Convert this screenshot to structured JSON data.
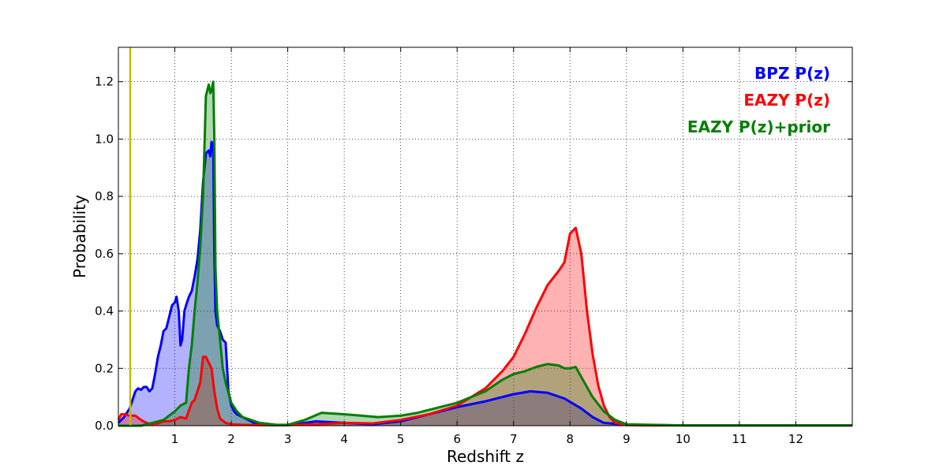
{
  "chart_data": {
    "type": "area",
    "xlabel": "Redshift z",
    "ylabel": "Probability",
    "xlim": [
      0,
      13
    ],
    "ylim": [
      0,
      1.32
    ],
    "x_ticks": [
      1,
      2,
      3,
      4,
      5,
      6,
      7,
      8,
      9,
      10,
      11,
      12
    ],
    "y_ticks": [
      0.0,
      0.2,
      0.4,
      0.6,
      0.8,
      1.0,
      1.2
    ],
    "x_tick_labels": [
      "1",
      "2",
      "3",
      "4",
      "5",
      "6",
      "7",
      "8",
      "9",
      "10",
      "11",
      "12"
    ],
    "y_tick_labels": [
      "0.0",
      "0.2",
      "0.4",
      "0.6",
      "0.8",
      "1.0",
      "1.2"
    ],
    "grid": true,
    "legend_position": "top-right",
    "vertical_line": {
      "x": 0.21,
      "color": "#bfbf00"
    },
    "series": [
      {
        "name": "BPZ P(z)",
        "color": "#0000ff",
        "fill": "#0000ff",
        "x": [
          0.0,
          0.1,
          0.2,
          0.3,
          0.35,
          0.4,
          0.45,
          0.5,
          0.55,
          0.6,
          0.65,
          0.7,
          0.75,
          0.8,
          0.85,
          0.9,
          0.95,
          1.0,
          1.03,
          1.07,
          1.1,
          1.13,
          1.17,
          1.2,
          1.25,
          1.3,
          1.35,
          1.4,
          1.45,
          1.5,
          1.55,
          1.6,
          1.63,
          1.65,
          1.68,
          1.7,
          1.72,
          1.75,
          1.8,
          1.85,
          1.9,
          1.95,
          2.0,
          2.05,
          2.1,
          2.2,
          2.3,
          2.4,
          2.5,
          2.7,
          3.0,
          3.5,
          4.0,
          4.5,
          5.0,
          5.5,
          6.0,
          6.5,
          7.0,
          7.3,
          7.6,
          7.9,
          8.2,
          8.4,
          8.6,
          9.0,
          10.0,
          11.0,
          12.0,
          13.0
        ],
        "y": [
          0.01,
          0.03,
          0.06,
          0.12,
          0.13,
          0.125,
          0.135,
          0.135,
          0.12,
          0.13,
          0.18,
          0.24,
          0.28,
          0.33,
          0.34,
          0.38,
          0.42,
          0.43,
          0.45,
          0.4,
          0.28,
          0.3,
          0.4,
          0.42,
          0.45,
          0.47,
          0.52,
          0.58,
          0.68,
          0.85,
          0.95,
          0.96,
          0.94,
          0.99,
          0.98,
          0.6,
          0.4,
          0.35,
          0.33,
          0.3,
          0.29,
          0.12,
          0.07,
          0.05,
          0.04,
          0.03,
          0.02,
          0.01,
          0.005,
          0.002,
          0.002,
          0.015,
          0.01,
          0.005,
          0.015,
          0.04,
          0.065,
          0.085,
          0.11,
          0.12,
          0.115,
          0.095,
          0.06,
          0.03,
          0.01,
          0.003,
          0.001,
          0.001,
          0.001,
          0.001
        ]
      },
      {
        "name": "EAZY P(z)",
        "color": "#ff0000",
        "fill": "#ff0000",
        "x": [
          0.0,
          0.05,
          0.1,
          0.2,
          0.3,
          0.4,
          0.5,
          0.6,
          0.7,
          0.8,
          0.9,
          1.0,
          1.1,
          1.2,
          1.3,
          1.35,
          1.4,
          1.45,
          1.5,
          1.55,
          1.6,
          1.65,
          1.7,
          1.75,
          1.8,
          1.9,
          2.0,
          2.2,
          2.5,
          3.0,
          3.5,
          4.0,
          4.5,
          5.0,
          5.5,
          6.0,
          6.5,
          6.8,
          7.0,
          7.2,
          7.4,
          7.6,
          7.8,
          7.9,
          8.0,
          8.1,
          8.2,
          8.3,
          8.4,
          8.5,
          8.6,
          8.7,
          8.8,
          9.0,
          9.5,
          10.0,
          11.0,
          12.0,
          13.0
        ],
        "y": [
          0.02,
          0.04,
          0.04,
          0.035,
          0.035,
          0.02,
          0.01,
          0.005,
          0.008,
          0.015,
          0.015,
          0.02,
          0.03,
          0.025,
          0.08,
          0.09,
          0.12,
          0.15,
          0.24,
          0.24,
          0.22,
          0.2,
          0.12,
          0.06,
          0.025,
          0.01,
          0.005,
          0.003,
          0.002,
          0.002,
          0.005,
          0.01,
          0.008,
          0.02,
          0.04,
          0.07,
          0.13,
          0.19,
          0.24,
          0.32,
          0.41,
          0.49,
          0.54,
          0.57,
          0.67,
          0.69,
          0.6,
          0.4,
          0.25,
          0.14,
          0.07,
          0.03,
          0.01,
          0.002,
          0.001,
          0.001,
          0.001,
          0.001,
          0.001
        ]
      },
      {
        "name": "EAZY P(z)+prior",
        "color": "#007f00",
        "fill": "#007f00",
        "x": [
          0.0,
          0.2,
          0.4,
          0.6,
          0.8,
          1.0,
          1.1,
          1.2,
          1.25,
          1.3,
          1.35,
          1.4,
          1.45,
          1.5,
          1.55,
          1.6,
          1.63,
          1.65,
          1.68,
          1.7,
          1.72,
          1.75,
          1.8,
          1.85,
          1.9,
          2.0,
          2.1,
          2.2,
          2.5,
          2.8,
          3.0,
          3.3,
          3.6,
          4.0,
          4.3,
          4.6,
          5.0,
          5.3,
          5.6,
          6.0,
          6.5,
          6.8,
          7.0,
          7.2,
          7.4,
          7.6,
          7.8,
          7.9,
          8.0,
          8.1,
          8.2,
          8.4,
          8.6,
          8.8,
          9.0,
          10.0,
          11.0,
          12.0,
          13.0
        ],
        "y": [
          0.0,
          0.0,
          0.0,
          0.01,
          0.02,
          0.05,
          0.07,
          0.08,
          0.2,
          0.28,
          0.4,
          0.5,
          0.62,
          0.8,
          1.15,
          1.19,
          1.16,
          1.17,
          1.2,
          1.0,
          0.55,
          0.4,
          0.3,
          0.2,
          0.15,
          0.08,
          0.05,
          0.03,
          0.01,
          0.003,
          0.003,
          0.02,
          0.045,
          0.04,
          0.035,
          0.03,
          0.035,
          0.045,
          0.06,
          0.08,
          0.12,
          0.16,
          0.18,
          0.19,
          0.205,
          0.215,
          0.21,
          0.2,
          0.2,
          0.205,
          0.17,
          0.1,
          0.05,
          0.02,
          0.005,
          0.001,
          0.001,
          0.001,
          0.001
        ]
      }
    ]
  }
}
